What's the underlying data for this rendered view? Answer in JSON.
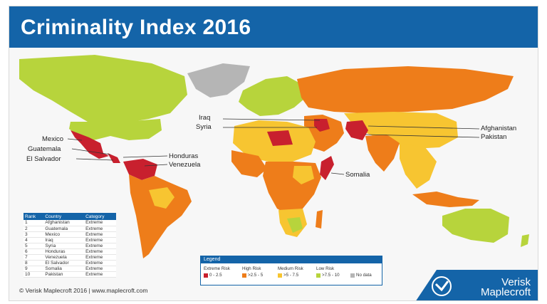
{
  "header": {
    "title": "Criminality Index 2016"
  },
  "colors": {
    "title_bar": "#1464a8",
    "extreme": "#c8202e",
    "high": "#ee7d1a",
    "medium": "#f7c531",
    "low": "#b7d43c",
    "no_data": "#b5b5b5",
    "ocean": "#f7f7f7"
  },
  "map_labels": {
    "iraq": "Iraq",
    "syria": "Syria",
    "afghanistan": "Afghanistan",
    "pakistan": "Pakistan",
    "mexico": "Mexico",
    "guatemala": "Guatemala",
    "el_salvador": "El Salvador",
    "honduras": "Honduras",
    "venezuela": "Venezuela",
    "somalia": "Somalia"
  },
  "ranking_table": {
    "headers": [
      "Rank",
      "Country",
      "Category"
    ],
    "rows": [
      [
        "1",
        "Afghanistan",
        "Extreme"
      ],
      [
        "2",
        "Guatemala",
        "Extreme"
      ],
      [
        "3",
        "Mexico",
        "Extreme"
      ],
      [
        "4",
        "Iraq",
        "Extreme"
      ],
      [
        "5",
        "Syria",
        "Extreme"
      ],
      [
        "6",
        "Honduras",
        "Extreme"
      ],
      [
        "7",
        "Venezuela",
        "Extreme"
      ],
      [
        "8",
        "El Salvador",
        "Extreme"
      ],
      [
        "9",
        "Somalia",
        "Extreme"
      ],
      [
        "10",
        "Pakistan",
        "Extreme"
      ]
    ]
  },
  "legend": {
    "title": "Legend",
    "items": [
      {
        "category": "Extreme Risk",
        "range": "0 - 2.5",
        "color": "#c8202e"
      },
      {
        "category": "High Risk",
        "range": ">2.5 - 5",
        "color": "#ee7d1a"
      },
      {
        "category": "Medium Risk",
        "range": ">5 - 7.5",
        "color": "#f7c531"
      },
      {
        "category": "Low Risk",
        "range": ">7.5 - 10",
        "color": "#b7d43c"
      },
      {
        "category": "",
        "range": "No data",
        "color": "#b5b5b5"
      }
    ]
  },
  "footer": {
    "copyright": "© Verisk Maplecroft 2016  |  www.maplecroft.com",
    "brand_line1": "Verisk",
    "brand_line2": "Maplecroft",
    "brand_color": "#1464a8"
  }
}
